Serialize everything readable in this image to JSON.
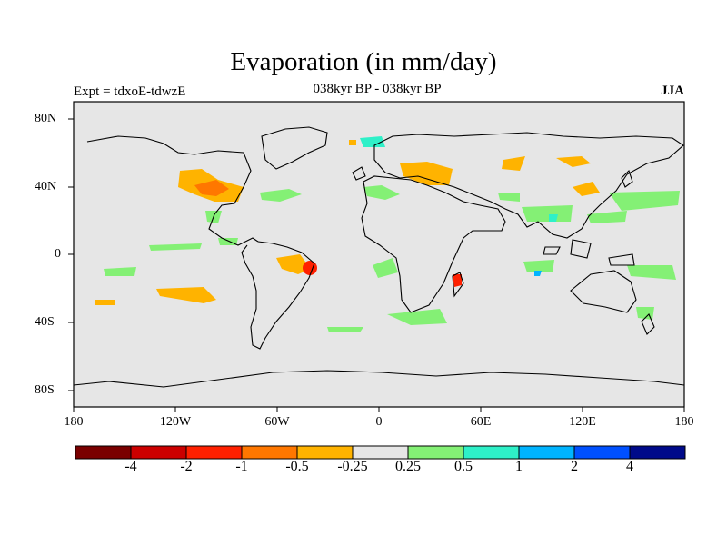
{
  "header": {
    "title": "Evaporation (in mm/day)",
    "subtitle": "038kyr BP - 038kyr BP",
    "expt": "Expt = tdxoE-tdwzE",
    "season": "JJA"
  },
  "axes": {
    "lat_ticks": [
      "80N",
      "40N",
      "0",
      "40S",
      "80S"
    ],
    "lon_ticks": [
      "180",
      "120W",
      "60W",
      "0",
      "60E",
      "120E",
      "180"
    ]
  },
  "legend": {
    "colors": [
      "#7a0000",
      "#cc0000",
      "#ff2000",
      "#ff7700",
      "#ffb300",
      "#e6e6e6",
      "#84f075",
      "#2ef0c8",
      "#00b4ff",
      "#0050ff",
      "#000a8a"
    ],
    "labels": [
      "-4",
      "-2",
      "-1",
      "-0.5",
      "-0.25",
      "0.25",
      "0.5",
      "1",
      "2",
      "4"
    ]
  },
  "colors": {
    "background": "#e6e6e6",
    "coastline": "#000000"
  }
}
